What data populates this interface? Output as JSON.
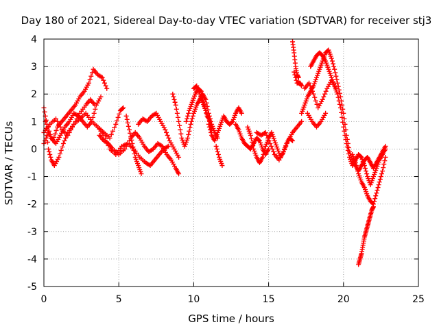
{
  "chart_data": {
    "type": "scatter",
    "title": "Day 180 of 2021, Sidereal Day-to-day VTEC variation (SDTVAR) for receiver stj3",
    "xlabel": "GPS time / hours",
    "ylabel": "SDTVAR / TECUs",
    "xlim": [
      0,
      25
    ],
    "ylim": [
      -5,
      4
    ],
    "xticks": [
      "0",
      "5",
      "10",
      "15",
      "20",
      "25"
    ],
    "yticks": [
      "-5",
      "-4",
      "-3",
      "-2",
      "-1",
      "0",
      "1",
      "2",
      "3",
      "4"
    ],
    "grid": true,
    "marker": "plus",
    "series_color": "#ff0000",
    "tracks": [
      [
        [
          0.0,
          0.2
        ],
        [
          0.3,
          0.6
        ],
        [
          0.6,
          0.3
        ],
        [
          0.9,
          0.8
        ],
        [
          1.2,
          1.0
        ],
        [
          1.5,
          1.2
        ],
        [
          1.8,
          1.4
        ],
        [
          2.1,
          1.6
        ],
        [
          2.4,
          1.9
        ],
        [
          2.7,
          2.1
        ],
        [
          3.0,
          2.4
        ],
        [
          3.3,
          2.9
        ],
        [
          3.6,
          2.7
        ],
        [
          3.9,
          2.6
        ],
        [
          4.2,
          2.2
        ]
      ],
      [
        [
          0.0,
          1.5
        ],
        [
          0.2,
          0.9
        ],
        [
          0.5,
          0.4
        ],
        [
          0.8,
          0.2
        ],
        [
          1.1,
          0.5
        ],
        [
          1.4,
          0.8
        ],
        [
          1.7,
          1.0
        ],
        [
          2.0,
          1.3
        ],
        [
          2.3,
          1.2
        ],
        [
          2.6,
          1.0
        ],
        [
          2.9,
          0.8
        ],
        [
          3.2,
          1.0
        ],
        [
          3.5,
          1.6
        ],
        [
          3.8,
          1.9
        ]
      ],
      [
        [
          0.1,
          1.0
        ],
        [
          0.3,
          0.0
        ],
        [
          0.5,
          -0.4
        ],
        [
          0.7,
          -0.6
        ],
        [
          1.0,
          -0.3
        ],
        [
          1.3,
          0.2
        ],
        [
          1.6,
          0.6
        ],
        [
          2.0,
          0.9
        ],
        [
          2.4,
          1.1
        ],
        [
          2.8,
          1.3
        ],
        [
          3.2,
          1.0
        ],
        [
          3.6,
          0.8
        ],
        [
          4.0,
          0.6
        ],
        [
          4.4,
          0.4
        ],
        [
          4.8,
          0.9
        ],
        [
          5.1,
          1.4
        ],
        [
          5.3,
          1.5
        ]
      ],
      [
        [
          0.0,
          0.6
        ],
        [
          0.4,
          0.9
        ],
        [
          0.8,
          1.1
        ],
        [
          1.2,
          0.7
        ],
        [
          1.6,
          0.5
        ],
        [
          2.0,
          0.9
        ],
        [
          2.4,
          1.3
        ],
        [
          2.8,
          1.6
        ],
        [
          3.1,
          1.8
        ],
        [
          3.4,
          1.6
        ]
      ],
      [
        [
          3.7,
          0.5
        ],
        [
          4.0,
          0.3
        ],
        [
          4.3,
          0.2
        ],
        [
          4.6,
          0.0
        ],
        [
          5.0,
          -0.2
        ],
        [
          5.4,
          0.0
        ],
        [
          5.8,
          0.4
        ],
        [
          6.1,
          0.6
        ],
        [
          6.4,
          0.4
        ],
        [
          6.7,
          0.1
        ],
        [
          7.0,
          -0.1
        ],
        [
          7.3,
          0.0
        ],
        [
          7.6,
          0.2
        ],
        [
          7.9,
          0.1
        ],
        [
          8.2,
          -0.2
        ],
        [
          8.5,
          -0.4
        ],
        [
          8.8,
          -0.7
        ],
        [
          9.0,
          -0.9
        ]
      ],
      [
        [
          3.6,
          0.8
        ],
        [
          4.0,
          0.5
        ],
        [
          4.4,
          0.0
        ],
        [
          4.8,
          -0.2
        ],
        [
          5.2,
          0.1
        ],
        [
          5.6,
          0.2
        ],
        [
          6.0,
          0.0
        ],
        [
          6.4,
          -0.3
        ],
        [
          6.8,
          -0.5
        ],
        [
          7.1,
          -0.6
        ],
        [
          7.4,
          -0.4
        ],
        [
          7.7,
          -0.2
        ],
        [
          8.0,
          0.0
        ],
        [
          8.3,
          0.1
        ]
      ],
      [
        [
          5.5,
          1.2
        ],
        [
          5.7,
          0.7
        ],
        [
          5.9,
          0.2
        ],
        [
          6.1,
          -0.3
        ],
        [
          6.3,
          -0.6
        ],
        [
          6.5,
          -0.9
        ]
      ],
      [
        [
          6.3,
          0.9
        ],
        [
          6.6,
          1.1
        ],
        [
          6.9,
          1.0
        ],
        [
          7.2,
          1.2
        ],
        [
          7.5,
          1.3
        ],
        [
          7.8,
          1.0
        ],
        [
          8.1,
          0.7
        ],
        [
          8.4,
          0.3
        ],
        [
          8.7,
          0.0
        ],
        [
          9.0,
          -0.3
        ]
      ],
      [
        [
          8.6,
          2.0
        ],
        [
          8.8,
          1.6
        ],
        [
          9.0,
          1.0
        ],
        [
          9.2,
          0.4
        ],
        [
          9.4,
          0.1
        ],
        [
          9.6,
          0.4
        ],
        [
          9.8,
          0.9
        ],
        [
          10.0,
          1.3
        ],
        [
          10.2,
          1.6
        ],
        [
          10.4,
          1.8
        ],
        [
          10.6,
          2.0
        ],
        [
          10.8,
          1.8
        ],
        [
          11.0,
          1.3
        ],
        [
          11.2,
          0.9
        ],
        [
          11.4,
          0.6
        ],
        [
          11.6,
          0.4
        ]
      ],
      [
        [
          9.5,
          1.0
        ],
        [
          9.7,
          1.4
        ],
        [
          9.9,
          1.7
        ],
        [
          10.1,
          2.0
        ],
        [
          10.3,
          2.2
        ],
        [
          10.5,
          2.1
        ],
        [
          10.7,
          1.6
        ],
        [
          10.9,
          1.2
        ],
        [
          11.1,
          1.0
        ]
      ],
      [
        [
          10.0,
          2.2
        ],
        [
          10.2,
          2.3
        ],
        [
          10.4,
          2.0
        ],
        [
          10.6,
          1.7
        ],
        [
          10.8,
          1.4
        ],
        [
          11.0,
          1.1
        ],
        [
          11.2,
          0.7
        ]
      ],
      [
        [
          11.0,
          0.9
        ],
        [
          11.2,
          0.5
        ],
        [
          11.4,
          0.3
        ],
        [
          11.6,
          0.6
        ],
        [
          11.8,
          0.9
        ],
        [
          12.0,
          1.2
        ],
        [
          12.2,
          1.0
        ],
        [
          12.4,
          0.9
        ],
        [
          12.6,
          1.0
        ],
        [
          12.8,
          1.3
        ],
        [
          13.0,
          1.5
        ],
        [
          13.2,
          1.3
        ]
      ],
      [
        [
          11.5,
          0.1
        ],
        [
          11.7,
          -0.3
        ],
        [
          11.9,
          -0.6
        ]
      ],
      [
        [
          12.8,
          0.9
        ],
        [
          13.0,
          0.7
        ],
        [
          13.2,
          0.4
        ],
        [
          13.4,
          0.2
        ],
        [
          13.6,
          0.1
        ],
        [
          13.8,
          0.0
        ],
        [
          14.0,
          0.2
        ],
        [
          14.2,
          0.4
        ],
        [
          14.4,
          0.3
        ],
        [
          14.6,
          0.0
        ],
        [
          14.8,
          -0.2
        ],
        [
          15.0,
          0.0
        ]
      ],
      [
        [
          13.6,
          0.8
        ],
        [
          13.8,
          0.5
        ],
        [
          14.0,
          0.0
        ],
        [
          14.2,
          -0.3
        ],
        [
          14.4,
          -0.5
        ],
        [
          14.6,
          -0.3
        ],
        [
          14.8,
          0.1
        ],
        [
          15.0,
          0.4
        ],
        [
          15.2,
          0.6
        ],
        [
          15.4,
          0.3
        ],
        [
          15.6,
          0.0
        ],
        [
          15.8,
          -0.3
        ],
        [
          16.0,
          -0.1
        ],
        [
          16.2,
          0.2
        ],
        [
          16.4,
          0.4
        ],
        [
          16.6,
          0.3
        ]
      ],
      [
        [
          14.2,
          0.6
        ],
        [
          14.5,
          0.5
        ],
        [
          14.8,
          0.6
        ],
        [
          15.1,
          0.2
        ],
        [
          15.4,
          -0.2
        ],
        [
          15.7,
          -0.4
        ],
        [
          16.0,
          -0.1
        ],
        [
          16.3,
          0.3
        ],
        [
          16.6,
          0.6
        ],
        [
          16.9,
          0.8
        ],
        [
          17.2,
          1.0
        ]
      ],
      [
        [
          16.6,
          3.9
        ],
        [
          16.7,
          3.5
        ],
        [
          16.8,
          3.0
        ],
        [
          16.9,
          2.7
        ],
        [
          17.0,
          2.6
        ]
      ],
      [
        [
          16.7,
          2.8
        ],
        [
          16.9,
          2.4
        ],
        [
          17.1,
          2.4
        ],
        [
          17.2,
          2.3
        ]
      ],
      [
        [
          17.2,
          1.3
        ],
        [
          17.4,
          1.6
        ],
        [
          17.6,
          1.9
        ],
        [
          17.8,
          2.1
        ],
        [
          18.0,
          2.3
        ],
        [
          18.2,
          2.6
        ],
        [
          18.4,
          2.9
        ],
        [
          18.6,
          3.2
        ],
        [
          18.8,
          3.5
        ],
        [
          19.0,
          3.6
        ],
        [
          19.2,
          3.3
        ],
        [
          19.4,
          2.9
        ],
        [
          19.6,
          2.4
        ],
        [
          19.8,
          1.9
        ],
        [
          20.0,
          1.3
        ],
        [
          20.2,
          0.5
        ],
        [
          20.4,
          -0.1
        ],
        [
          20.6,
          -0.4
        ],
        [
          20.8,
          -0.6
        ],
        [
          21.0,
          -0.8
        ],
        [
          21.2,
          -0.6
        ],
        [
          21.4,
          -0.4
        ],
        [
          21.6,
          -0.3
        ],
        [
          21.8,
          -0.5
        ],
        [
          22.0,
          -0.7
        ],
        [
          22.2,
          -0.5
        ],
        [
          22.4,
          -0.3
        ],
        [
          22.6,
          -0.1
        ],
        [
          22.8,
          0.1
        ]
      ],
      [
        [
          17.8,
          3.0
        ],
        [
          18.0,
          3.2
        ],
        [
          18.2,
          3.4
        ],
        [
          18.4,
          3.5
        ],
        [
          18.6,
          3.4
        ],
        [
          18.8,
          3.2
        ],
        [
          19.0,
          2.9
        ],
        [
          19.2,
          2.6
        ],
        [
          19.4,
          2.3
        ],
        [
          19.6,
          2.0
        ],
        [
          19.8,
          1.5
        ],
        [
          20.0,
          0.8
        ],
        [
          20.2,
          0.2
        ],
        [
          20.4,
          -0.3
        ],
        [
          20.6,
          -0.6
        ],
        [
          20.8,
          -0.4
        ],
        [
          21.0,
          -0.2
        ],
        [
          21.2,
          -0.3
        ],
        [
          21.4,
          -0.6
        ],
        [
          21.6,
          -1.0
        ],
        [
          21.8,
          -1.3
        ],
        [
          22.0,
          -1.0
        ],
        [
          22.2,
          -0.7
        ],
        [
          22.4,
          -0.4
        ],
        [
          22.6,
          -0.2
        ],
        [
          22.8,
          0.0
        ]
      ],
      [
        [
          17.4,
          2.2
        ],
        [
          17.7,
          2.4
        ],
        [
          18.0,
          2.0
        ],
        [
          18.3,
          1.5
        ],
        [
          18.6,
          1.8
        ],
        [
          18.9,
          2.2
        ],
        [
          19.2,
          2.5
        ],
        [
          19.5,
          2.2
        ]
      ],
      [
        [
          17.6,
          1.3
        ],
        [
          17.9,
          1.0
        ],
        [
          18.2,
          0.8
        ],
        [
          18.5,
          1.0
        ],
        [
          18.8,
          1.3
        ]
      ],
      [
        [
          20.6,
          -0.2
        ],
        [
          20.8,
          -0.5
        ],
        [
          21.0,
          -0.9
        ],
        [
          21.2,
          -1.2
        ],
        [
          21.4,
          -1.4
        ],
        [
          21.6,
          -1.7
        ],
        [
          21.8,
          -1.9
        ],
        [
          22.0,
          -2.0
        ],
        [
          22.2,
          -1.6
        ],
        [
          22.4,
          -1.2
        ],
        [
          22.6,
          -0.8
        ],
        [
          22.8,
          -0.3
        ]
      ],
      [
        [
          21.0,
          -4.2
        ],
        [
          21.1,
          -4.0
        ],
        [
          21.2,
          -3.8
        ],
        [
          21.3,
          -3.5
        ],
        [
          21.4,
          -3.2
        ],
        [
          21.5,
          -3.0
        ],
        [
          21.6,
          -2.8
        ],
        [
          21.7,
          -2.6
        ],
        [
          21.8,
          -2.4
        ],
        [
          21.9,
          -2.2
        ],
        [
          22.0,
          -2.1
        ]
      ]
    ]
  }
}
